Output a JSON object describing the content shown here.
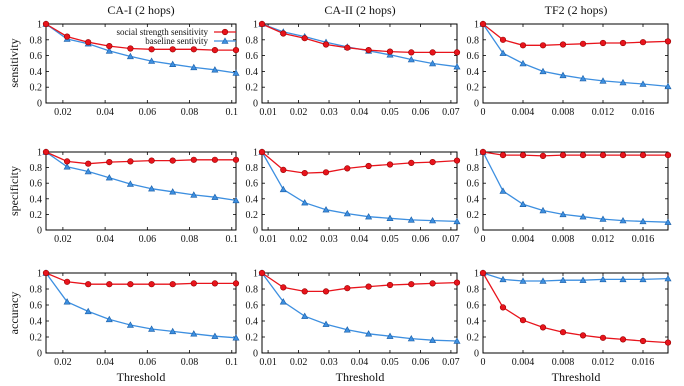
{
  "figure": {
    "columns": [
      "CA-I (2 hops)",
      "CA-II (2 hops)",
      "TF2 (2 hops)"
    ],
    "rows": [
      "sensitivity",
      "specificity",
      "accuracy"
    ],
    "xlabel": "Threshold"
  },
  "colors": {
    "social": "#e8141c",
    "baseline": "#3d8fe0"
  },
  "legend": {
    "items": [
      {
        "label": "social strength sensitivity",
        "marker": "circle"
      },
      {
        "label": "baseline sentivity",
        "marker": "triangle"
      }
    ],
    "placement": "top-right"
  },
  "axes_x": [
    {
      "xlim": [
        0.012,
        0.102
      ],
      "xticks": [
        0.02,
        0.04,
        0.06,
        0.08,
        0.1
      ],
      "xtick_labels": [
        "0.02",
        "0.04",
        "0.06",
        "0.08",
        "0.1"
      ]
    },
    {
      "xlim": [
        0.008,
        0.072
      ],
      "xticks": [
        0.01,
        0.02,
        0.03,
        0.04,
        0.05,
        0.06,
        0.07
      ],
      "xtick_labels": [
        "0.01",
        "0.02",
        "0.03",
        "0.04",
        "0.05",
        "0.06",
        "0.07"
      ]
    },
    {
      "xlim": [
        0.0,
        0.0185
      ],
      "xticks": [
        0,
        0.004,
        0.008,
        0.012,
        0.016
      ],
      "xtick_labels": [
        "0",
        "0.004",
        "0.008",
        "0.012",
        "0.016"
      ]
    }
  ],
  "yticks": [
    0,
    0.2,
    0.4,
    0.6,
    0.8,
    1
  ],
  "ytick_labels": [
    "0",
    "0.2",
    "0.4",
    "0.6",
    "0.8",
    "1"
  ],
  "chart_data": [
    {
      "type": "line",
      "title": "CA-I (2 hops)",
      "ylabel": "sensitivity",
      "xlim": [
        0.012,
        0.102
      ],
      "ylim": [
        0,
        1
      ],
      "x": [
        0.012,
        0.022,
        0.032,
        0.042,
        0.052,
        0.062,
        0.072,
        0.082,
        0.092,
        0.102
      ],
      "series": [
        {
          "name": "social strength sensitivity",
          "values": [
            1.0,
            0.84,
            0.77,
            0.72,
            0.69,
            0.68,
            0.68,
            0.68,
            0.67,
            0.67
          ]
        },
        {
          "name": "baseline sentivity",
          "values": [
            1.0,
            0.81,
            0.75,
            0.66,
            0.59,
            0.53,
            0.49,
            0.45,
            0.42,
            0.38
          ]
        }
      ]
    },
    {
      "type": "line",
      "title": "CA-II (2 hops)",
      "ylabel": "sensitivity",
      "xlim": [
        0.008,
        0.072
      ],
      "ylim": [
        0,
        1
      ],
      "x": [
        0.008,
        0.015,
        0.022,
        0.029,
        0.036,
        0.043,
        0.05,
        0.057,
        0.064,
        0.072
      ],
      "series": [
        {
          "name": "social strength sensitivity",
          "values": [
            1.0,
            0.88,
            0.82,
            0.74,
            0.7,
            0.67,
            0.65,
            0.64,
            0.64,
            0.64
          ]
        },
        {
          "name": "baseline sentivity",
          "values": [
            1.0,
            0.9,
            0.84,
            0.77,
            0.71,
            0.66,
            0.61,
            0.55,
            0.5,
            0.46
          ]
        }
      ]
    },
    {
      "type": "line",
      "title": "TF2 (2 hops)",
      "ylabel": "sensitivity",
      "xlim": [
        0.0,
        0.0185
      ],
      "ylim": [
        0,
        1
      ],
      "x": [
        0.0,
        0.002,
        0.004,
        0.006,
        0.008,
        0.01,
        0.012,
        0.014,
        0.016,
        0.0185
      ],
      "series": [
        {
          "name": "social strength sensitivity",
          "values": [
            1.0,
            0.8,
            0.73,
            0.73,
            0.74,
            0.75,
            0.76,
            0.76,
            0.77,
            0.78
          ]
        },
        {
          "name": "baseline sentivity",
          "values": [
            1.0,
            0.63,
            0.5,
            0.4,
            0.35,
            0.31,
            0.28,
            0.26,
            0.24,
            0.21
          ]
        }
      ]
    },
    {
      "type": "line",
      "title": "",
      "ylabel": "specificity",
      "xlim": [
        0.012,
        0.102
      ],
      "ylim": [
        0,
        1
      ],
      "x": [
        0.012,
        0.022,
        0.032,
        0.042,
        0.052,
        0.062,
        0.072,
        0.082,
        0.092,
        0.102
      ],
      "series": [
        {
          "name": "social strength sensitivity",
          "values": [
            1.0,
            0.88,
            0.85,
            0.87,
            0.88,
            0.89,
            0.89,
            0.9,
            0.9,
            0.9
          ]
        },
        {
          "name": "baseline sentivity",
          "values": [
            1.0,
            0.81,
            0.75,
            0.67,
            0.59,
            0.53,
            0.49,
            0.45,
            0.42,
            0.38
          ]
        }
      ]
    },
    {
      "type": "line",
      "title": "",
      "ylabel": "specificity",
      "xlim": [
        0.008,
        0.072
      ],
      "ylim": [
        0,
        1
      ],
      "x": [
        0.008,
        0.015,
        0.022,
        0.029,
        0.036,
        0.043,
        0.05,
        0.057,
        0.064,
        0.072
      ],
      "series": [
        {
          "name": "social strength sensitivity",
          "values": [
            1.0,
            0.77,
            0.73,
            0.74,
            0.79,
            0.82,
            0.84,
            0.86,
            0.87,
            0.89
          ]
        },
        {
          "name": "baseline sentivity",
          "values": [
            1.0,
            0.52,
            0.35,
            0.26,
            0.21,
            0.17,
            0.15,
            0.13,
            0.12,
            0.11
          ]
        }
      ]
    },
    {
      "type": "line",
      "title": "",
      "ylabel": "specificity",
      "xlim": [
        0.0,
        0.0185
      ],
      "ylim": [
        0,
        1
      ],
      "x": [
        0.0,
        0.002,
        0.004,
        0.006,
        0.008,
        0.01,
        0.012,
        0.014,
        0.016,
        0.0185
      ],
      "series": [
        {
          "name": "social strength sensitivity",
          "values": [
            1.0,
            0.96,
            0.96,
            0.95,
            0.96,
            0.96,
            0.96,
            0.96,
            0.96,
            0.96
          ]
        },
        {
          "name": "baseline sentivity",
          "values": [
            1.0,
            0.5,
            0.33,
            0.25,
            0.2,
            0.17,
            0.14,
            0.12,
            0.11,
            0.1
          ]
        }
      ]
    },
    {
      "type": "line",
      "title": "",
      "ylabel": "accuracy",
      "xlim": [
        0.012,
        0.102
      ],
      "ylim": [
        0,
        1
      ],
      "x": [
        0.012,
        0.022,
        0.032,
        0.042,
        0.052,
        0.062,
        0.072,
        0.082,
        0.092,
        0.102
      ],
      "series": [
        {
          "name": "social strength sensitivity",
          "values": [
            1.0,
            0.89,
            0.86,
            0.86,
            0.86,
            0.86,
            0.86,
            0.87,
            0.87,
            0.87
          ]
        },
        {
          "name": "baseline sentivity",
          "values": [
            1.0,
            0.64,
            0.52,
            0.42,
            0.35,
            0.3,
            0.27,
            0.24,
            0.21,
            0.19
          ]
        }
      ]
    },
    {
      "type": "line",
      "title": "",
      "ylabel": "accuracy",
      "xlim": [
        0.008,
        0.072
      ],
      "ylim": [
        0,
        1
      ],
      "x": [
        0.008,
        0.015,
        0.022,
        0.029,
        0.036,
        0.043,
        0.05,
        0.057,
        0.064,
        0.072
      ],
      "series": [
        {
          "name": "social strength sensitivity",
          "values": [
            1.0,
            0.82,
            0.77,
            0.77,
            0.81,
            0.83,
            0.85,
            0.86,
            0.87,
            0.88
          ]
        },
        {
          "name": "baseline sentivity",
          "values": [
            1.0,
            0.64,
            0.46,
            0.36,
            0.29,
            0.24,
            0.21,
            0.18,
            0.16,
            0.15
          ]
        }
      ]
    },
    {
      "type": "line",
      "title": "",
      "ylabel": "accuracy",
      "xlim": [
        0.0,
        0.0185
      ],
      "ylim": [
        0,
        1
      ],
      "x": [
        0.0,
        0.002,
        0.004,
        0.006,
        0.008,
        0.01,
        0.012,
        0.014,
        0.016,
        0.0185
      ],
      "series": [
        {
          "name": "social strength sensitivity",
          "values": [
            1.0,
            0.57,
            0.41,
            0.32,
            0.26,
            0.22,
            0.19,
            0.17,
            0.15,
            0.13
          ]
        },
        {
          "name": "baseline sentivity",
          "values": [
            1.0,
            0.92,
            0.9,
            0.9,
            0.91,
            0.91,
            0.92,
            0.92,
            0.92,
            0.93
          ]
        }
      ]
    }
  ]
}
